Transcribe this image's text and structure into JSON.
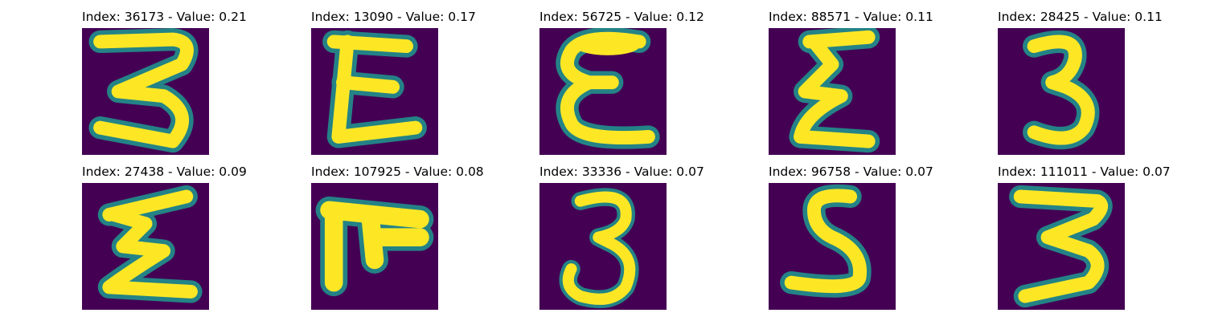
{
  "figure": {
    "background": "#ffffff",
    "colormap": {
      "name": "viridis",
      "low": "#440154",
      "mid": "#21918c",
      "high": "#fde725"
    },
    "images": [
      {
        "title": "Index: 36173 - Value: 0.21",
        "index": 36173,
        "value": 0.21,
        "depicts": "handwritten 3-like character"
      },
      {
        "title": "Index: 13090 - Value: 0.17",
        "index": 13090,
        "value": 0.17,
        "depicts": "handwritten E-like character"
      },
      {
        "title": "Index: 56725 - Value: 0.12",
        "index": 56725,
        "value": 0.12,
        "depicts": "handwritten epsilon-like character"
      },
      {
        "title": "Index: 88571 - Value: 0.11",
        "index": 88571,
        "value": 0.11,
        "depicts": "handwritten Sigma-like character"
      },
      {
        "title": "Index: 28425 - Value: 0.11",
        "index": 28425,
        "value": 0.11,
        "depicts": "handwritten 3"
      },
      {
        "title": "Index: 27438 - Value: 0.09",
        "index": 27438,
        "value": 0.09,
        "depicts": "handwritten Sigma-like character"
      },
      {
        "title": "Index: 107925 - Value: 0.08",
        "index": 107925,
        "value": 0.08,
        "depicts": "handwritten comb-like character"
      },
      {
        "title": "Index: 33336 - Value: 0.07",
        "index": 33336,
        "value": 0.07,
        "depicts": "handwritten 3"
      },
      {
        "title": "Index: 96758 - Value: 0.07",
        "index": 96758,
        "value": 0.07,
        "depicts": "handwritten S"
      },
      {
        "title": "Index: 111011 - Value: 0.07",
        "index": 111011,
        "value": 0.07,
        "depicts": "handwritten 3"
      }
    ]
  }
}
